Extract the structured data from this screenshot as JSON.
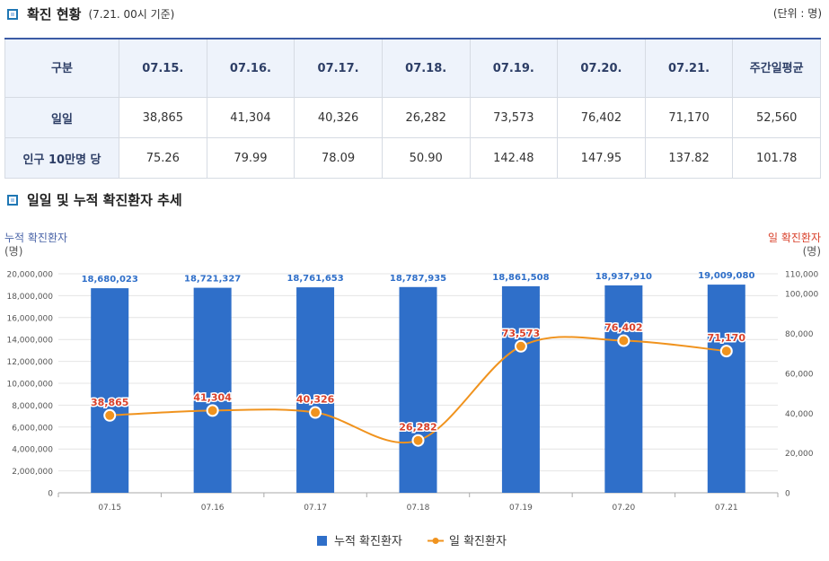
{
  "header": {
    "title": "확진 현황",
    "subtitle": "(7.21. 00시 기준)",
    "unit": "(단위 : 명)"
  },
  "table": {
    "columns": [
      "구분",
      "07.15.",
      "07.16.",
      "07.17.",
      "07.18.",
      "07.19.",
      "07.20.",
      "07.21.",
      "주간일평균"
    ],
    "rows": [
      {
        "label": "일일",
        "values": [
          "38,865",
          "41,304",
          "40,326",
          "26,282",
          "73,573",
          "76,402",
          "71,170",
          "52,560"
        ]
      },
      {
        "label": "인구 10만명 당",
        "values": [
          "75.26",
          "79.99",
          "78.09",
          "50.90",
          "142.48",
          "147.95",
          "137.82",
          "101.78"
        ]
      }
    ]
  },
  "section2": {
    "title": "일일 및 누적 확진환자 추세"
  },
  "colors": {
    "bar": "#2f6fc9",
    "line": "#f0931e",
    "marker": "#f0931e",
    "line_label": "#d9412b",
    "bar_label": "#2f6fc9",
    "left_axis_title": "#4a64a8",
    "right_axis_title": "#d9412b"
  },
  "chart_data": {
    "type": "bar+line",
    "categories": [
      "07.15",
      "07.16",
      "07.17",
      "07.18",
      "07.19",
      "07.20",
      "07.21"
    ],
    "series": [
      {
        "name": "누적 확진환자",
        "type": "bar",
        "axis": "left",
        "values": [
          18680023,
          18721327,
          18761653,
          18787935,
          18861508,
          18937910,
          19009080
        ],
        "labels": [
          "18,680,023",
          "18,721,327",
          "18,761,653",
          "18,787,935",
          "18,861,508",
          "18,937,910",
          "19,009,080"
        ]
      },
      {
        "name": "일 확진환자",
        "type": "line",
        "axis": "right",
        "values": [
          38865,
          41304,
          40326,
          26282,
          73573,
          76402,
          71170
        ],
        "labels": [
          "38,865",
          "41,304",
          "40,326",
          "26,282",
          "73,573",
          "76,402",
          "71,170"
        ]
      }
    ],
    "left_axis": {
      "title": "누적 확진환자",
      "unit": "(명)",
      "min": 0,
      "max": 20000000,
      "ticks": [
        0,
        2000000,
        4000000,
        6000000,
        8000000,
        10000000,
        12000000,
        14000000,
        16000000,
        18000000,
        20000000
      ],
      "tick_labels": [
        "0",
        "2,000,000",
        "4,000,000",
        "6,000,000",
        "8,000,000",
        "10,000,000",
        "12,000,000",
        "14,000,000",
        "16,000,000",
        "18,000,000",
        "20,000,000"
      ]
    },
    "right_axis": {
      "title": "일 확진환자",
      "unit": "(명)",
      "min": 0,
      "max": 110000,
      "ticks": [
        0,
        20000,
        40000,
        60000,
        80000,
        100000,
        110000
      ],
      "tick_labels": [
        "0",
        "20,000",
        "40,000",
        "60,000",
        "80,000",
        "100,000",
        "110,000"
      ]
    },
    "legend": [
      "누적 확진환자",
      "일 확진환자"
    ],
    "legend_position": "bottom",
    "grid": true
  }
}
